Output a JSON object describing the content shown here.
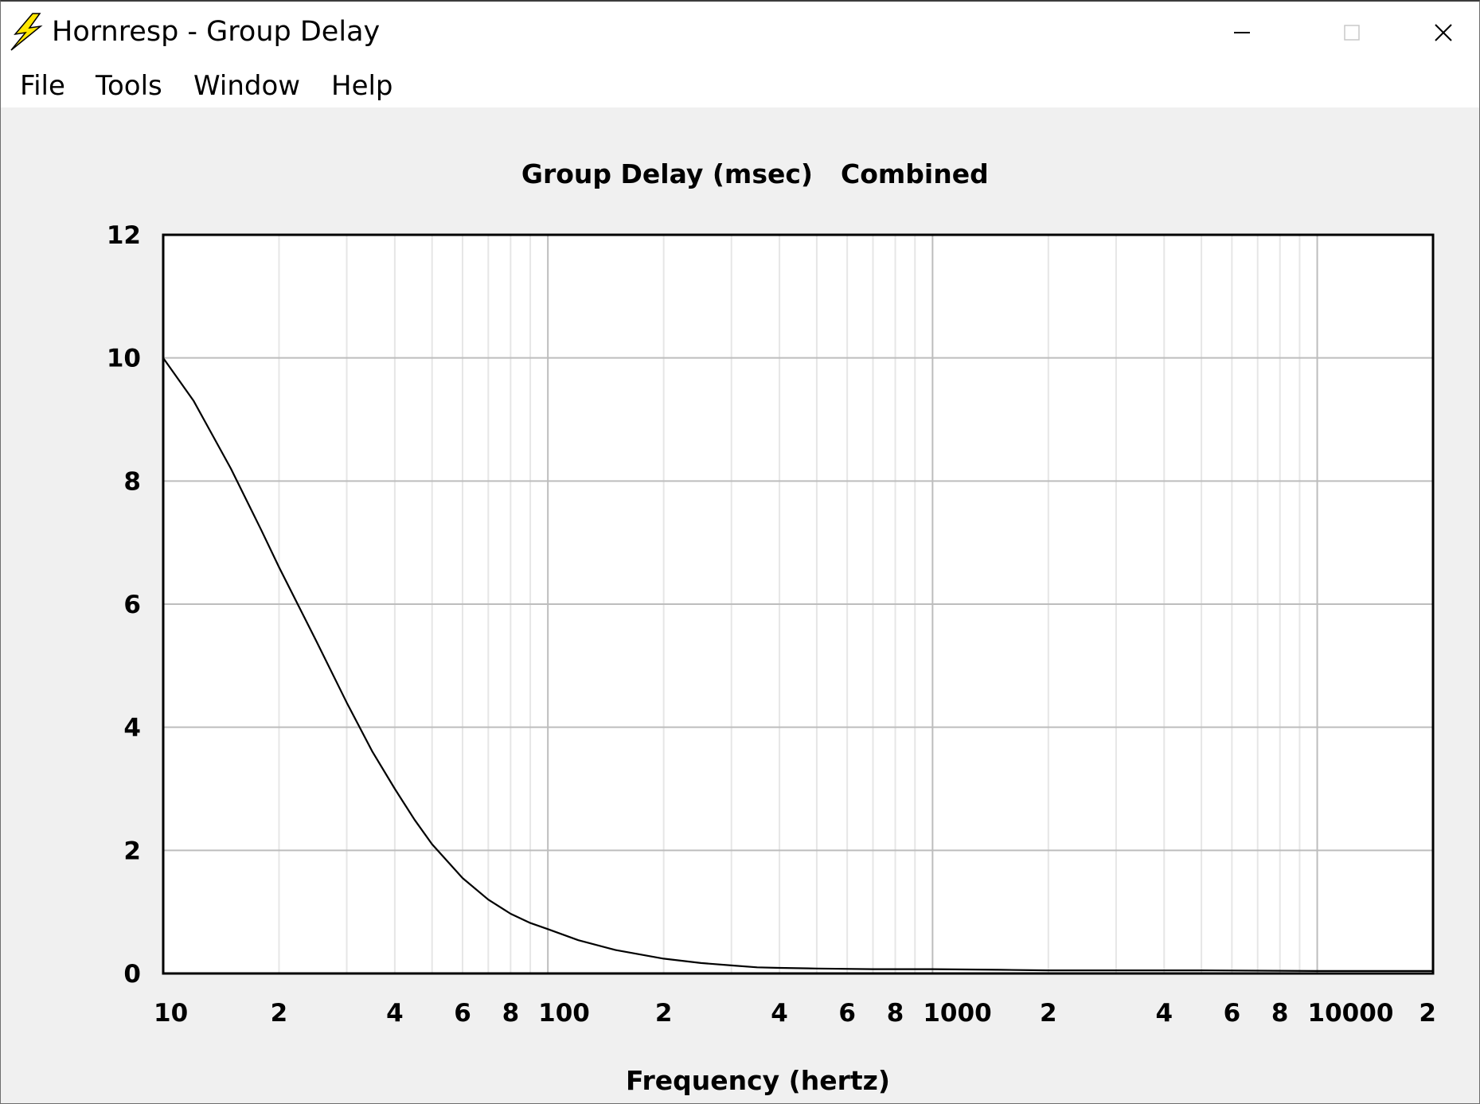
{
  "window": {
    "title": "Hornresp - Group Delay",
    "icon": "lightning-bolt-icon",
    "controls": [
      "minimize-icon",
      "maximize-icon",
      "close-icon"
    ]
  },
  "menu": {
    "items": [
      "File",
      "Tools",
      "Window",
      "Help"
    ]
  },
  "chart_data": {
    "type": "line",
    "title": "Group Delay (msec)",
    "subtitle": "Combined",
    "xlabel": "Frequency (hertz)",
    "ylabel": "",
    "xscale": "log",
    "xlim": [
      10,
      20000
    ],
    "ylim": [
      0,
      12
    ],
    "grid": true,
    "y_ticks": [
      0,
      2,
      4,
      6,
      8,
      10,
      12
    ],
    "x_ticks": [
      {
        "value": 10,
        "label": "10"
      },
      {
        "value": 20,
        "label": "2"
      },
      {
        "value": 40,
        "label": "4"
      },
      {
        "value": 60,
        "label": "6"
      },
      {
        "value": 80,
        "label": "8"
      },
      {
        "value": 100,
        "label": "100"
      },
      {
        "value": 200,
        "label": "2"
      },
      {
        "value": 400,
        "label": "4"
      },
      {
        "value": 600,
        "label": "6"
      },
      {
        "value": 800,
        "label": "8"
      },
      {
        "value": 1000,
        "label": "1000"
      },
      {
        "value": 2000,
        "label": "2"
      },
      {
        "value": 4000,
        "label": "4"
      },
      {
        "value": 6000,
        "label": "6"
      },
      {
        "value": 8000,
        "label": "8"
      },
      {
        "value": 10000,
        "label": "10000"
      },
      {
        "value": 20000,
        "label": "2"
      }
    ],
    "series": [
      {
        "color": "#000000",
        "x": [
          10,
          12,
          15,
          18,
          20,
          25,
          30,
          35,
          40,
          45,
          50,
          60,
          70,
          80,
          90,
          100,
          120,
          150,
          200,
          250,
          300,
          350,
          400,
          500,
          700,
          1000,
          1500,
          2000,
          5000,
          10000,
          20000
        ],
        "y": [
          10.0,
          9.3,
          8.2,
          7.2,
          6.6,
          5.4,
          4.4,
          3.6,
          3.0,
          2.5,
          2.1,
          1.55,
          1.2,
          0.97,
          0.82,
          0.72,
          0.54,
          0.38,
          0.24,
          0.17,
          0.13,
          0.1,
          0.09,
          0.08,
          0.07,
          0.07,
          0.06,
          0.05,
          0.05,
          0.04,
          0.04
        ]
      }
    ]
  }
}
